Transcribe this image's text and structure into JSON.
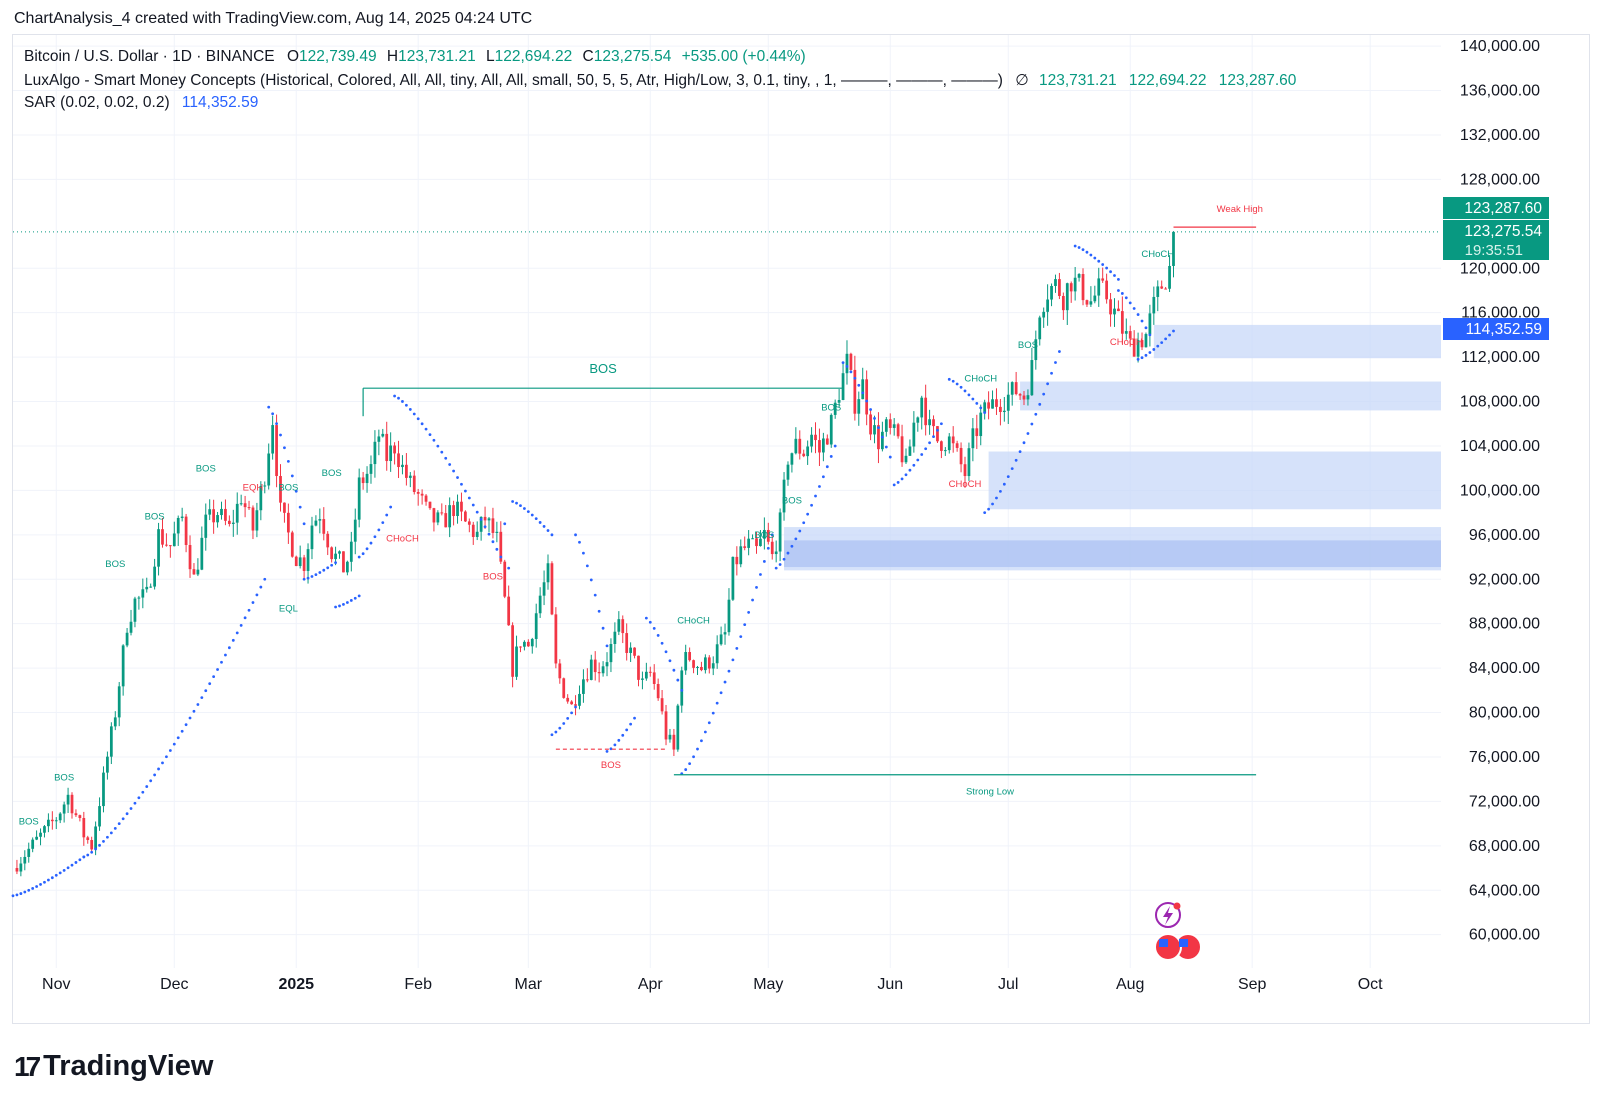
{
  "header": {
    "created_by": "ChartAnalysis_4 created with TradingView.com, Aug 14, 2025 04:24 UTC"
  },
  "legend": {
    "symbol": "Bitcoin / U.S. Dollar · 1D · BINANCE",
    "o_label": "O",
    "o_val": "122,739.49",
    "h_label": "H",
    "h_val": "123,731.21",
    "l_label": "L",
    "l_val": "122,694.22",
    "c_label": "C",
    "c_val": "123,275.54",
    "change": "+535.00 (+0.44%)",
    "luxalgo": "LuxAlgo - Smart Money Concepts (Historical, Colored, All, All, tiny, All, All, small, 50, 5, 5, Atr, High/Low, 3, 0.1, tiny, , 1, ———, ———, ———)",
    "lux_icon": "∅",
    "lux_v1": "123,731.21",
    "lux_v2": "122,694.22",
    "lux_v3": "123,287.60",
    "sar": "SAR (0.02, 0.02, 0.2)",
    "sar_val": "114,352.59"
  },
  "price_tags": {
    "weak_high": "123,287.60",
    "last": "123,275.54",
    "countdown": "19:35:51",
    "sar": "114,352.59"
  },
  "chart_data": {
    "type": "candlestick",
    "title": "Bitcoin / U.S. Dollar · 1D · BINANCE",
    "ylim": [
      57000,
      141000
    ],
    "y_ticks": [
      "140,000.00",
      "136,000.00",
      "132,000.00",
      "128,000.00",
      "120,000.00",
      "116,000.00",
      "112,000.00",
      "108,000.00",
      "104,000.00",
      "100,000.00",
      "96,000.00",
      "92,000.00",
      "88,000.00",
      "84,000.00",
      "80,000.00",
      "76,000.00",
      "72,000.00",
      "68,000.00",
      "64,000.00",
      "60,000.00"
    ],
    "y_tick_values": [
      140000,
      136000,
      132000,
      128000,
      120000,
      116000,
      112000,
      108000,
      104000,
      100000,
      96000,
      92000,
      88000,
      84000,
      80000,
      76000,
      72000,
      68000,
      64000,
      60000
    ],
    "x_ticks": [
      {
        "label": "Nov",
        "day": 5
      },
      {
        "label": "2025",
        "day": 66,
        "bold": true
      },
      {
        "label": "Dec",
        "day": 35
      },
      {
        "label": "Feb",
        "day": 97
      },
      {
        "label": "Mar",
        "day": 125
      },
      {
        "label": "Apr",
        "day": 156
      },
      {
        "label": "May",
        "day": 186
      },
      {
        "label": "Jun",
        "day": 217
      },
      {
        "label": "Jul",
        "day": 247
      },
      {
        "label": "Aug",
        "day": 278
      },
      {
        "label": "Sep",
        "day": 309
      },
      {
        "label": "Oct",
        "day": 339
      }
    ],
    "x_day_range": [
      -6,
      357
    ],
    "path_points": [
      [
        -6,
        66000
      ],
      [
        0,
        68500
      ],
      [
        5,
        70500
      ],
      [
        8,
        72500
      ],
      [
        12,
        69000
      ],
      [
        14,
        68000
      ],
      [
        18,
        76000
      ],
      [
        20,
        80000
      ],
      [
        23,
        88000
      ],
      [
        25,
        90000
      ],
      [
        28,
        90500
      ],
      [
        31,
        96000
      ],
      [
        34,
        95000
      ],
      [
        37,
        97500
      ],
      [
        40,
        92000
      ],
      [
        43,
        97000
      ],
      [
        46,
        98000
      ],
      [
        49,
        96500
      ],
      [
        52,
        99500
      ],
      [
        55,
        96500
      ],
      [
        58,
        101500
      ],
      [
        60,
        106500
      ],
      [
        62,
        98000
      ],
      [
        64,
        96000
      ],
      [
        66,
        94000
      ],
      [
        68,
        93500
      ],
      [
        70,
        97000
      ],
      [
        72,
        98000
      ],
      [
        75,
        94500
      ],
      [
        78,
        93000
      ],
      [
        80,
        94500
      ],
      [
        82,
        100500
      ],
      [
        85,
        102000
      ],
      [
        87,
        105000
      ],
      [
        89,
        103000
      ],
      [
        91,
        104000
      ],
      [
        93,
        102000
      ],
      [
        95,
        100500
      ],
      [
        97,
        99500
      ],
      [
        100,
        97500
      ],
      [
        103,
        97000
      ],
      [
        106,
        98500
      ],
      [
        109,
        97000
      ],
      [
        112,
        96000
      ],
      [
        114,
        97500
      ],
      [
        117,
        95500
      ],
      [
        119,
        90000
      ],
      [
        121,
        84000
      ],
      [
        123,
        86500
      ],
      [
        125,
        86000
      ],
      [
        128,
        90500
      ],
      [
        130,
        92500
      ],
      [
        132,
        84000
      ],
      [
        134,
        82000
      ],
      [
        136,
        80500
      ],
      [
        138,
        82500
      ],
      [
        141,
        84500
      ],
      [
        143,
        84000
      ],
      [
        145,
        85000
      ],
      [
        148,
        87500
      ],
      [
        150,
        86000
      ],
      [
        152,
        84500
      ],
      [
        154,
        82500
      ],
      [
        156,
        83500
      ],
      [
        158,
        81500
      ],
      [
        160,
        78000
      ],
      [
        162,
        76500
      ],
      [
        164,
        84500
      ],
      [
        166,
        85000
      ],
      [
        169,
        84000
      ],
      [
        172,
        85000
      ],
      [
        175,
        87000
      ],
      [
        177,
        93000
      ],
      [
        179,
        94500
      ],
      [
        181,
        95000
      ],
      [
        183,
        94500
      ],
      [
        185,
        96000
      ],
      [
        187,
        94000
      ],
      [
        189,
        97000
      ],
      [
        191,
        103000
      ],
      [
        193,
        104000
      ],
      [
        195,
        103500
      ],
      [
        197,
        105000
      ],
      [
        199,
        103500
      ],
      [
        202,
        106000
      ],
      [
        204,
        109000
      ],
      [
        206,
        111500
      ],
      [
        208,
        108000
      ],
      [
        210,
        109500
      ],
      [
        212,
        106000
      ],
      [
        214,
        104500
      ],
      [
        216,
        105500
      ],
      [
        219,
        104500
      ],
      [
        221,
        102000
      ],
      [
        223,
        106000
      ],
      [
        225,
        108500
      ],
      [
        227,
        105500
      ],
      [
        229,
        104500
      ],
      [
        232,
        104500
      ],
      [
        234,
        103000
      ],
      [
        236,
        101500
      ],
      [
        238,
        104500
      ],
      [
        240,
        106500
      ],
      [
        242,
        107500
      ],
      [
        244,
        108000
      ],
      [
        247,
        108500
      ],
      [
        249,
        109000
      ],
      [
        251,
        108500
      ],
      [
        253,
        111000
      ],
      [
        255,
        116500
      ],
      [
        257,
        118000
      ],
      [
        259,
        118500
      ],
      [
        261,
        117500
      ],
      [
        263,
        119000
      ],
      [
        266,
        118000
      ],
      [
        268,
        117000
      ],
      [
        270,
        118000
      ],
      [
        272,
        117500
      ],
      [
        274,
        116000
      ],
      [
        276,
        114500
      ],
      [
        278,
        113000
      ],
      [
        280,
        113500
      ],
      [
        282,
        114000
      ],
      [
        284,
        116500
      ],
      [
        286,
        118500
      ],
      [
        288,
        120000
      ],
      [
        289,
        123276
      ]
    ],
    "sar_segments": [
      {
        "x0": -6,
        "x1": 12,
        "y0": 63500,
        "y1": 67000
      },
      {
        "x0": 12,
        "x1": 58,
        "y0": 67000,
        "y1": 92000
      },
      {
        "x0": 59,
        "x1": 68,
        "y0": 107500,
        "y1": 97000
      },
      {
        "x0": 68,
        "x1": 76,
        "y0": 92000,
        "y1": 93500
      },
      {
        "x0": 76,
        "x1": 82,
        "y0": 89500,
        "y1": 90500
      },
      {
        "x0": 82,
        "x1": 90,
        "y0": 94000,
        "y1": 98500
      },
      {
        "x0": 91,
        "x1": 118,
        "y0": 108500,
        "y1": 94000
      },
      {
        "x0": 119,
        "x1": 120,
        "y0": 97000,
        "y1": 93000
      },
      {
        "x0": 121,
        "x1": 131,
        "y0": 99000,
        "y1": 96000
      },
      {
        "x0": 131,
        "x1": 137,
        "y0": 78000,
        "y1": 80500
      },
      {
        "x0": 137,
        "x1": 145,
        "y0": 96000,
        "y1": 86000
      },
      {
        "x0": 145,
        "x1": 152,
        "y0": 76500,
        "y1": 79500
      },
      {
        "x0": 155,
        "x1": 164,
        "y0": 88500,
        "y1": 82000
      },
      {
        "x0": 164,
        "x1": 187,
        "y0": 74500,
        "y1": 96000
      },
      {
        "x0": 188,
        "x1": 203,
        "y0": 93000,
        "y1": 104000
      },
      {
        "x0": 205,
        "x1": 217,
        "y0": 111500,
        "y1": 103000
      },
      {
        "x0": 218,
        "x1": 230,
        "y0": 100500,
        "y1": 106000
      },
      {
        "x0": 232,
        "x1": 241,
        "y0": 110000,
        "y1": 107000
      },
      {
        "x0": 241,
        "x1": 260,
        "y0": 98000,
        "y1": 112500
      },
      {
        "x0": 264,
        "x1": 275,
        "y0": 122000,
        "y1": 119000
      },
      {
        "x0": 275,
        "x1": 283,
        "y0": 118000,
        "y1": 114000
      },
      {
        "x0": 280,
        "x1": 289,
        "y0": 111800,
        "y1": 114352
      }
    ],
    "zones": [
      {
        "y0": 111900,
        "y1": 114900,
        "x0": 284,
        "shade": "light"
      },
      {
        "y0": 107200,
        "y1": 109800,
        "x0": 250,
        "shade": "light"
      },
      {
        "y0": 98300,
        "y1": 103500,
        "x0": 242,
        "shade": "light"
      },
      {
        "y0": 92800,
        "y1": 96700,
        "x0": 190,
        "shade": "light"
      },
      {
        "y0": 93100,
        "y1": 95500,
        "x0": 190,
        "shade": "dark"
      }
    ],
    "levels": [
      {
        "label": "BOS",
        "price": 109200,
        "x0": 83,
        "x1": 205,
        "color": "green",
        "style": "solid",
        "label_size": "big"
      },
      {
        "label": "Weak High",
        "price": 123700,
        "x0": 289,
        "x1": 310,
        "color": "red",
        "style": "solid",
        "label_size": "tiny"
      },
      {
        "label": "Strong Low",
        "price": 74400,
        "x0": 162,
        "x1": 310,
        "color": "green",
        "style": "solid",
        "label_size": "tiny"
      },
      {
        "label": "BOS",
        "price": 76700,
        "x0": 132,
        "x1": 160,
        "color": "red",
        "style": "dashed",
        "label_size": "tiny"
      }
    ],
    "annotations": [
      {
        "text": "BOS",
        "day": -2,
        "price": 69900,
        "color": "green"
      },
      {
        "text": "BOS",
        "day": 7,
        "price": 73900,
        "color": "green"
      },
      {
        "text": "BOS",
        "day": 20,
        "price": 93100,
        "color": "green"
      },
      {
        "text": "BOS",
        "day": 30,
        "price": 97400,
        "color": "green"
      },
      {
        "text": "BOS",
        "day": 43,
        "price": 101700,
        "color": "green"
      },
      {
        "text": "EQH",
        "day": 55,
        "price": 100000,
        "color": "red"
      },
      {
        "text": "BOS",
        "day": 64,
        "price": 100000,
        "color": "green"
      },
      {
        "text": "EQL",
        "day": 64,
        "price": 89100,
        "color": "green"
      },
      {
        "text": "BOS",
        "day": 75,
        "price": 101300,
        "color": "green"
      },
      {
        "text": "CHoCH",
        "day": 93,
        "price": 95400,
        "color": "red"
      },
      {
        "text": "BOS",
        "day": 116,
        "price": 92000,
        "color": "red"
      },
      {
        "text": "CHoCH",
        "day": 167,
        "price": 88000,
        "color": "green"
      },
      {
        "text": "BOS",
        "day": 185,
        "price": 95700,
        "color": "green"
      },
      {
        "text": "BOS",
        "day": 192,
        "price": 98800,
        "color": "green"
      },
      {
        "text": "BOS",
        "day": 202,
        "price": 107200,
        "color": "green"
      },
      {
        "text": "CHoCH",
        "day": 240,
        "price": 109800,
        "color": "green"
      },
      {
        "text": "CHoCH",
        "day": 236,
        "price": 100300,
        "color": "red"
      },
      {
        "text": "BOS",
        "day": 252,
        "price": 112800,
        "color": "green"
      },
      {
        "text": "CHoCH",
        "day": 285,
        "price": 121000,
        "color": "green"
      },
      {
        "text": "CHoCH",
        "day": 277,
        "price": 113100,
        "color": "red"
      }
    ]
  },
  "brand": {
    "name": "TradingView",
    "mark": "17"
  },
  "colors": {
    "up": "#089981",
    "down": "#f23645",
    "sar": "#2962ff",
    "zone": "#c5d6f8",
    "zone_dark": "#a9c1f2",
    "grid": "#f0f3fa",
    "tag_green": "#089981",
    "tag_blue": "#2962ff"
  }
}
